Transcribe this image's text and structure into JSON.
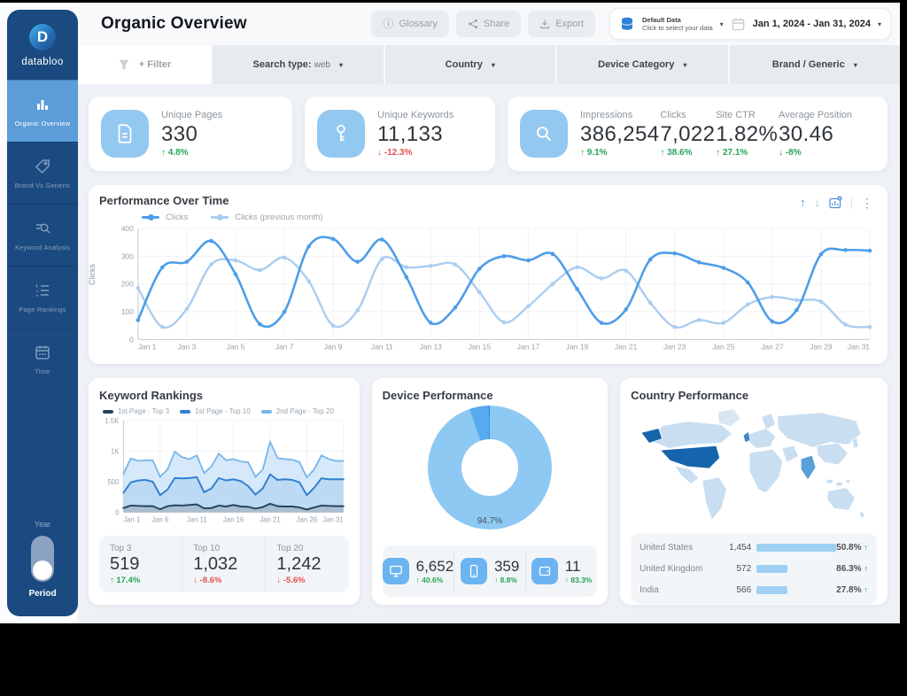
{
  "colors": {
    "sidebar": "#1b4a80",
    "sidebar_active": "#5b9cd9",
    "tile_blue": "#93c8f1",
    "green": "#27a35a",
    "red": "#e5504f",
    "bar": "#9fd0f3",
    "map_land": "#c9def0",
    "map_land_light": "#d8e7f4",
    "map_us": "#1565ad",
    "map_uk": "#3f86c7",
    "map_india": "#5aa0d8"
  },
  "icons": {
    "chevron": "▾",
    "info": "ⓘ",
    "dots": "⋮",
    "arrow_up": "↑",
    "arrow_down": "↓"
  },
  "sidebar": {
    "logo_letter": "D",
    "logo_text": "databloo",
    "items": [
      {
        "label": "Organic Overview",
        "icon": "bar-chart-icon",
        "active": true
      },
      {
        "label": "Brand Vs Generic",
        "icon": "tag-icon",
        "active": false
      },
      {
        "label": "Keyword Analysis",
        "icon": "keyword-search-icon",
        "active": false
      },
      {
        "label": "Page Rankings",
        "icon": "ranked-list-icon",
        "active": false
      },
      {
        "label": "Time",
        "icon": "calendar-icon",
        "active": false
      }
    ],
    "toggle": {
      "top_label": "Year",
      "bottom_label": "Period"
    }
  },
  "header": {
    "title": "Organic Overview",
    "glossary_label": "Glossary",
    "share_label": "Share",
    "export_label": "Export",
    "data_selector": {
      "line1": "Default Data",
      "line2": "Click to select your data"
    },
    "date_range": "Jan 1, 2024 - Jan 31, 2024"
  },
  "filters": {
    "add_filter": "+ Filter",
    "search_type_label": "Search type:",
    "search_type_value": "web",
    "country": "Country",
    "device_category": "Device Category",
    "brand_generic": "Brand / Generic"
  },
  "kpis": {
    "unique_pages": {
      "label": "Unique Pages",
      "value": "330",
      "delta": "↑ 4.8%",
      "tone": "green"
    },
    "unique_keywords": {
      "label": "Unique Keywords",
      "value": "11,133",
      "delta": "↓ -12.3%",
      "tone": "red"
    },
    "impressions": {
      "label": "Impressions",
      "value": "386,254",
      "delta": "↑ 9.1%",
      "tone": "green"
    },
    "clicks": {
      "label": "Clicks",
      "value": "7,022",
      "delta": "↑ 38.6%",
      "tone": "green"
    },
    "site_ctr": {
      "label": "Site CTR",
      "value": "1.82%",
      "delta": "↑ 27.1%",
      "tone": "green"
    },
    "avg_position": {
      "label": "Average Position",
      "value": "30.46",
      "delta": "↓ -8%",
      "tone": "green"
    }
  },
  "performance": {
    "title": "Performance Over Time",
    "ylabel": "Clicks"
  },
  "keyword_rankings": {
    "title": "Keyword Rankings",
    "stats": [
      {
        "label": "Top 3",
        "value": "519",
        "delta": "↑ 17.4%",
        "tone": "green"
      },
      {
        "label": "Top 10",
        "value": "1,032",
        "delta": "↓ -8.6%",
        "tone": "red"
      },
      {
        "label": "Top 20",
        "value": "1,242",
        "delta": "↓ -5.6%",
        "tone": "red"
      }
    ]
  },
  "device": {
    "title": "Device Performance",
    "center_label": "94.7%",
    "stats": [
      {
        "icon": "desktop-icon",
        "value": "6,652",
        "delta": "↑ 40.6%",
        "tone": "green"
      },
      {
        "icon": "mobile-icon",
        "value": "359",
        "delta": "↑ 8.8%",
        "tone": "green"
      },
      {
        "icon": "tablet-icon",
        "value": "11",
        "delta": "↑ 83.3%",
        "tone": "green"
      }
    ]
  },
  "country": {
    "title": "Country Performance",
    "rows": [
      {
        "name": "United States",
        "value": "1,454",
        "pct": "50.8%"
      },
      {
        "name": "United Kingdom",
        "value": "572",
        "pct": "86.3%"
      },
      {
        "name": "India",
        "value": "566",
        "pct": "27.8%"
      }
    ]
  },
  "chart_data": [
    {
      "id": "performance",
      "type": "line",
      "title": "Performance Over Time",
      "xlabel": "",
      "ylabel": "Clicks",
      "ylim": [
        0,
        400
      ],
      "yticks": [
        0,
        100,
        200,
        300,
        400
      ],
      "ytick_labels": [
        "0",
        "100",
        "200",
        "300",
        "400"
      ],
      "x": [
        "Jan 1",
        "Jan 2",
        "Jan 3",
        "Jan 4",
        "Jan 5",
        "Jan 6",
        "Jan 7",
        "Jan 8",
        "Jan 9",
        "Jan 10",
        "Jan 11",
        "Jan 12",
        "Jan 13",
        "Jan 14",
        "Jan 15",
        "Jan 16",
        "Jan 17",
        "Jan 18",
        "Jan 19",
        "Jan 20",
        "Jan 21",
        "Jan 22",
        "Jan 23",
        "Jan 24",
        "Jan 25",
        "Jan 26",
        "Jan 27",
        "Jan 28",
        "Jan 29",
        "Jan 30",
        "Jan 31"
      ],
      "legend_position": "top-left",
      "grid": true,
      "series": [
        {
          "name": "Clicks",
          "color": "#4d9de9",
          "width": 2.6,
          "values": [
            70,
            260,
            280,
            355,
            235,
            55,
            100,
            335,
            362,
            280,
            360,
            225,
            60,
            115,
            255,
            300,
            285,
            308,
            182,
            60,
            108,
            288,
            310,
            278,
            258,
            205,
            65,
            106,
            307,
            322,
            320
          ]
        },
        {
          "name": "Clicks (previous month)",
          "color": "#aacdf0",
          "width": 2.4,
          "values": [
            185,
            45,
            110,
            270,
            285,
            250,
            295,
            210,
            50,
            105,
            290,
            260,
            265,
            270,
            170,
            62,
            120,
            200,
            260,
            220,
            248,
            132,
            45,
            70,
            60,
            126,
            153,
            142,
            136,
            54,
            45
          ]
        }
      ]
    },
    {
      "id": "keyword_rankings",
      "type": "area",
      "title": "Keyword Rankings",
      "xlabel": "",
      "ylabel": "",
      "ylim": [
        0,
        1500
      ],
      "yticks": [
        0,
        500,
        1000,
        1500
      ],
      "ytick_labels": [
        "0",
        "500",
        "1K",
        "1.5K"
      ],
      "x": [
        "Jan 1",
        "Jan 2",
        "Jan 3",
        "Jan 4",
        "Jan 5",
        "Jan 6",
        "Jan 7",
        "Jan 8",
        "Jan 9",
        "Jan 10",
        "Jan 11",
        "Jan 12",
        "Jan 13",
        "Jan 14",
        "Jan 15",
        "Jan 16",
        "Jan 17",
        "Jan 18",
        "Jan 19",
        "Jan 20",
        "Jan 21",
        "Jan 22",
        "Jan 23",
        "Jan 24",
        "Jan 25",
        "Jan 26",
        "Jan 27",
        "Jan 28",
        "Jan 29",
        "Jan 30",
        "Jan 31"
      ],
      "legend_position": "top",
      "grid": true,
      "series": [
        {
          "name": "1st Page - Top 3",
          "color": "#24425f",
          "width": 2,
          "fill": "#a6b8c9",
          "fill_opacity": 0.85,
          "values": [
            70,
            110,
            105,
            100,
            100,
            50,
            100,
            115,
            110,
            120,
            130,
            65,
            70,
            110,
            95,
            120,
            95,
            90,
            60,
            85,
            140,
            100,
            95,
            95,
            80,
            45,
            80,
            110,
            105,
            100,
            100
          ]
        },
        {
          "name": "1st Page - Top 10",
          "color": "#2f7fd1",
          "width": 2,
          "fill": "#b9d8f2",
          "fill_opacity": 0.9,
          "values": [
            320,
            490,
            520,
            530,
            500,
            280,
            370,
            560,
            555,
            560,
            575,
            330,
            390,
            560,
            520,
            540,
            510,
            430,
            290,
            390,
            620,
            530,
            540,
            530,
            490,
            280,
            400,
            555,
            540,
            540,
            540
          ]
        },
        {
          "name": "2nd Page - Top 20",
          "color": "#74b4ec",
          "width": 1.8,
          "fill": "#d2e7f9",
          "fill_opacity": 0.9,
          "values": [
            630,
            880,
            840,
            850,
            850,
            580,
            700,
            990,
            900,
            870,
            930,
            640,
            750,
            960,
            850,
            870,
            830,
            820,
            580,
            700,
            1150,
            890,
            870,
            860,
            820,
            570,
            700,
            930,
            870,
            840,
            840
          ]
        }
      ]
    },
    {
      "id": "device",
      "type": "pie",
      "title": "Device Performance",
      "labels": [
        "Desktop",
        "Mobile",
        "Tablet"
      ],
      "values": [
        94.7,
        5.1,
        0.2
      ],
      "colors": [
        "#8ec9f3",
        "#58aaee",
        "#1f7fd4"
      ],
      "center_label": "94.7%"
    },
    {
      "id": "country",
      "type": "bar",
      "title": "Country Performance",
      "categories": [
        "United States",
        "United Kingdom",
        "India"
      ],
      "values": [
        1454,
        572,
        566
      ],
      "pct": [
        "50.8%",
        "86.3%",
        "27.8%"
      ],
      "bar_pct": [
        100,
        39,
        39
      ]
    }
  ]
}
